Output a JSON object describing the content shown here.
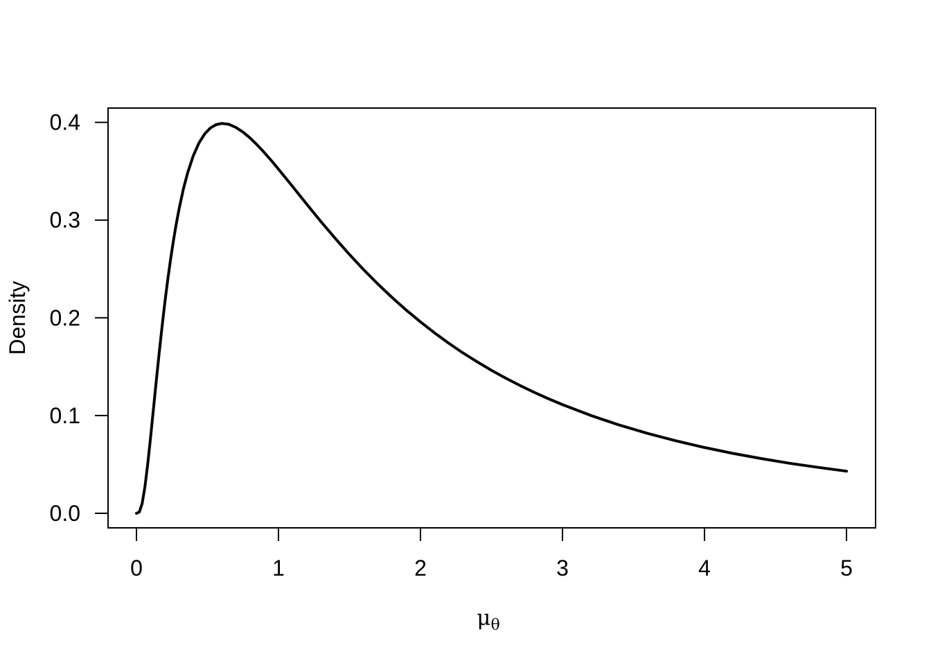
{
  "chart_data": {
    "type": "line",
    "title": "",
    "xlabel_main": "μ",
    "xlabel_sub": "θ",
    "ylabel": "Density",
    "xlim": [
      0,
      5
    ],
    "ylim": [
      0,
      0.4
    ],
    "grid": false,
    "legend": "none",
    "line_color": "#000000",
    "background": "#ffffff",
    "x_ticks": {
      "values": [
        0,
        1,
        2,
        3,
        4,
        5
      ],
      "labels": [
        "0",
        "1",
        "2",
        "3",
        "4",
        "5"
      ]
    },
    "y_ticks": {
      "values": [
        0,
        0.1,
        0.2,
        0.3,
        0.4
      ],
      "labels": [
        "0.0",
        "0.1",
        "0.2",
        "0.3",
        "0.4"
      ]
    },
    "series": [
      {
        "name": "Density",
        "color": "#000000",
        "points": [
          [
            0,
            0
          ],
          [
            0.02,
            0.0012
          ],
          [
            0.04,
            0.0099
          ],
          [
            0.06,
            0.0275
          ],
          [
            0.08,
            0.0513
          ],
          [
            0.1,
            0.0785
          ],
          [
            0.12,
            0.1074
          ],
          [
            0.14,
            0.1361
          ],
          [
            0.16,
            0.1641
          ],
          [
            0.18,
            0.1907
          ],
          [
            0.2,
            0.2157
          ],
          [
            0.22,
            0.2386
          ],
          [
            0.24,
            0.2596
          ],
          [
            0.26,
            0.2787
          ],
          [
            0.28,
            0.2959
          ],
          [
            0.3,
            0.3113
          ],
          [
            0.33,
            0.3314
          ],
          [
            0.36,
            0.3481
          ],
          [
            0.4,
            0.3658
          ],
          [
            0.44,
            0.3789
          ],
          [
            0.48,
            0.3881
          ],
          [
            0.52,
            0.3942
          ],
          [
            0.56,
            0.3976
          ],
          [
            0.6,
            0.3989
          ],
          [
            0.65,
            0.398
          ],
          [
            0.7,
            0.3948
          ],
          [
            0.75,
            0.39
          ],
          [
            0.8,
            0.384
          ],
          [
            0.85,
            0.3769
          ],
          [
            0.9,
            0.3691
          ],
          [
            0.95,
            0.3608
          ],
          [
            1.0,
            0.3521
          ],
          [
            1.1,
            0.3342
          ],
          [
            1.2,
            0.3161
          ],
          [
            1.3,
            0.2983
          ],
          [
            1.4,
            0.2812
          ],
          [
            1.5,
            0.2648
          ],
          [
            1.6,
            0.2492
          ],
          [
            1.7,
            0.2346
          ],
          [
            1.8,
            0.2208
          ],
          [
            1.9,
            0.2079
          ],
          [
            2.0,
            0.1958
          ],
          [
            2.1,
            0.1845
          ],
          [
            2.2,
            0.1739
          ],
          [
            2.3,
            0.164
          ],
          [
            2.4,
            0.1549
          ],
          [
            2.5,
            0.1463
          ],
          [
            2.6,
            0.1383
          ],
          [
            2.7,
            0.1308
          ],
          [
            2.8,
            0.1238
          ],
          [
            2.9,
            0.1173
          ],
          [
            3.0,
            0.1112
          ],
          [
            3.2,
            0.1001
          ],
          [
            3.4,
            0.0903
          ],
          [
            3.6,
            0.0817
          ],
          [
            3.8,
            0.0741
          ],
          [
            4.0,
            0.0673
          ],
          [
            4.2,
            0.0613
          ],
          [
            4.4,
            0.056
          ],
          [
            4.6,
            0.0512
          ],
          [
            4.8,
            0.047
          ],
          [
            5.0,
            0.0431
          ]
        ]
      }
    ]
  }
}
